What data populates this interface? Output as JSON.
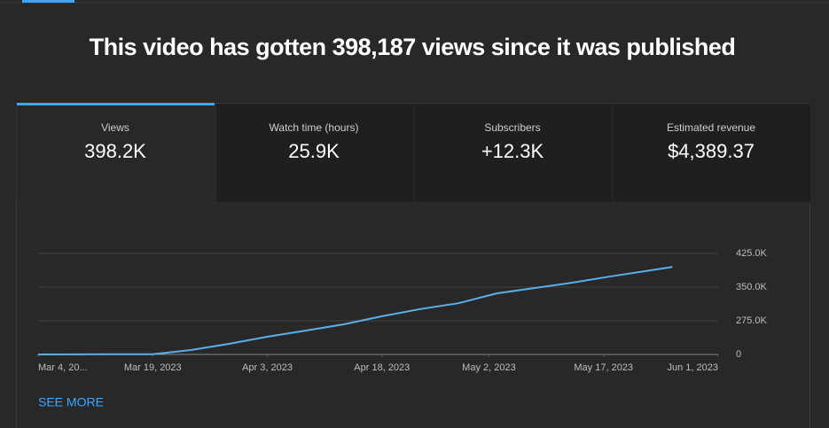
{
  "header": {
    "title": "This video has gotten 398,187 views since it was published"
  },
  "tabs": [
    {
      "label": "Views",
      "value": "398.2K"
    },
    {
      "label": "Watch time (hours)",
      "value": "25.9K"
    },
    {
      "label": "Subscribers",
      "value": "+12.3K"
    },
    {
      "label": "Estimated revenue",
      "value": "$4,389.37"
    }
  ],
  "chart_data": {
    "type": "line",
    "x": [
      "2023-03-04",
      "2023-03-19",
      "2023-03-24",
      "2023-03-29",
      "2023-04-03",
      "2023-04-08",
      "2023-04-13",
      "2023-04-18",
      "2023-04-23",
      "2023-04-28",
      "2023-05-03",
      "2023-05-08",
      "2023-05-13",
      "2023-05-18",
      "2023-05-23",
      "2023-05-26"
    ],
    "series": [
      {
        "name": "Views",
        "color": "#5aafe8",
        "values": [
          0,
          2000,
          36000,
          87000,
          145000,
          195000,
          246000,
          285000,
          301000,
          314000,
          336000,
          348000,
          360000,
          374000,
          387000,
          395000
        ]
      }
    ],
    "xlim": [
      "2023-03-04",
      "2023-06-01"
    ],
    "xticks": [
      {
        "value": "2023-03-04",
        "label": "Mar 4, 20..."
      },
      {
        "value": "2023-03-19",
        "label": "Mar 19, 2023"
      },
      {
        "value": "2023-04-03",
        "label": "Apr 3, 2023"
      },
      {
        "value": "2023-04-18",
        "label": "Apr 18, 2023"
      },
      {
        "value": "2023-05-02",
        "label": "May 2, 2023"
      },
      {
        "value": "2023-05-17",
        "label": "May 17, 2023"
      },
      {
        "value": "2023-06-01",
        "label": "Jun 1, 2023"
      }
    ],
    "ylim": [
      0,
      425000
    ],
    "yticks": [
      0,
      {
        "value": 275000,
        "label": "275.0K"
      },
      {
        "value": 350000,
        "label": "350.0K"
      },
      {
        "value": 425000,
        "label": "425.0K"
      }
    ],
    "grid": true
  },
  "footer": {
    "link": "SEE MORE"
  }
}
